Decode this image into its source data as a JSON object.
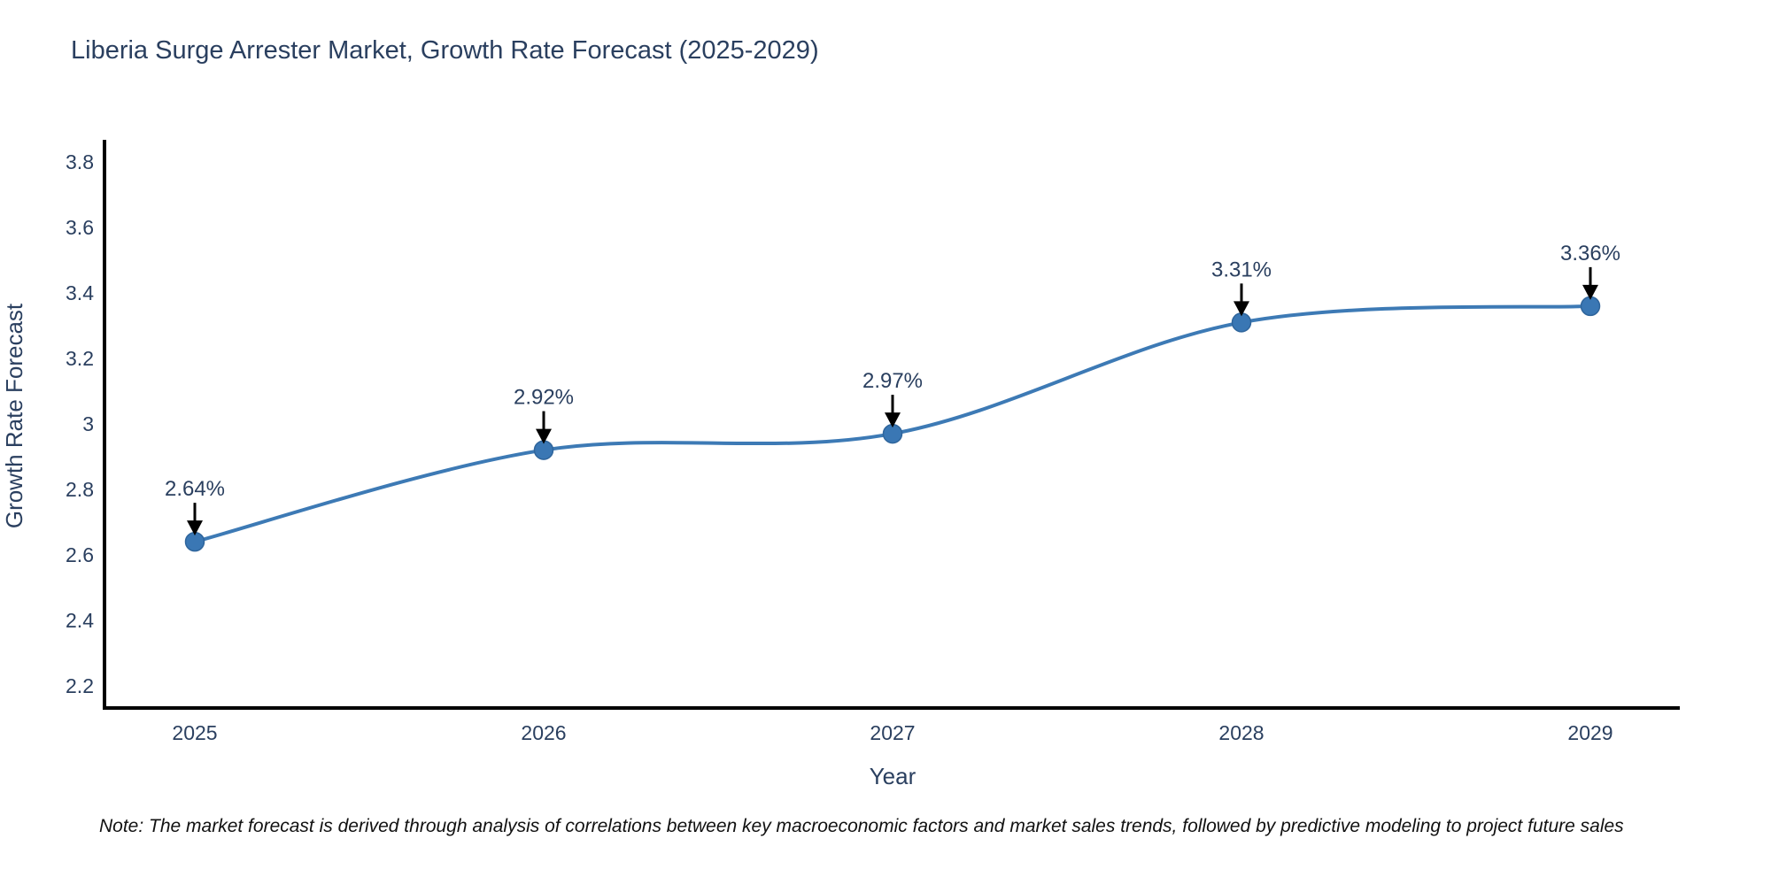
{
  "chart_data": {
    "type": "line",
    "title": "Liberia Surge Arrester Market, Growth Rate Forecast (2025-2029)",
    "xlabel": "Year",
    "ylabel": "Growth Rate Forecast",
    "categories": [
      "2025",
      "2026",
      "2027",
      "2028",
      "2029"
    ],
    "values": [
      2.64,
      2.92,
      2.97,
      3.31,
      3.36
    ],
    "point_labels": [
      "2.64%",
      "2.92%",
      "2.97%",
      "3.31%",
      "3.36%"
    ],
    "ytick_labels": [
      "3.8",
      "3.6",
      "3.4",
      "3.2",
      "3",
      "2.8",
      "2.6",
      "2.4",
      "2.2"
    ],
    "ytick_values": [
      3.8,
      3.6,
      3.4,
      3.2,
      3.0,
      2.8,
      2.6,
      2.4,
      2.2
    ],
    "ylim": [
      2.132,
      3.868
    ],
    "line_shape": "spline",
    "grid": false,
    "legend": "none",
    "colors": {
      "line": "#3d7ab5",
      "marker_fill": "#3a77b4",
      "marker_edge": "#2f659c",
      "axis_line": "#000000",
      "text": "#2a3f5f",
      "annotation_arrow": "#000000",
      "note": "#111111"
    },
    "note": "Note: The market forecast is derived through analysis of correlations between key macroeconomic factors and market sales trends, followed by predictive modeling to project future sales"
  }
}
